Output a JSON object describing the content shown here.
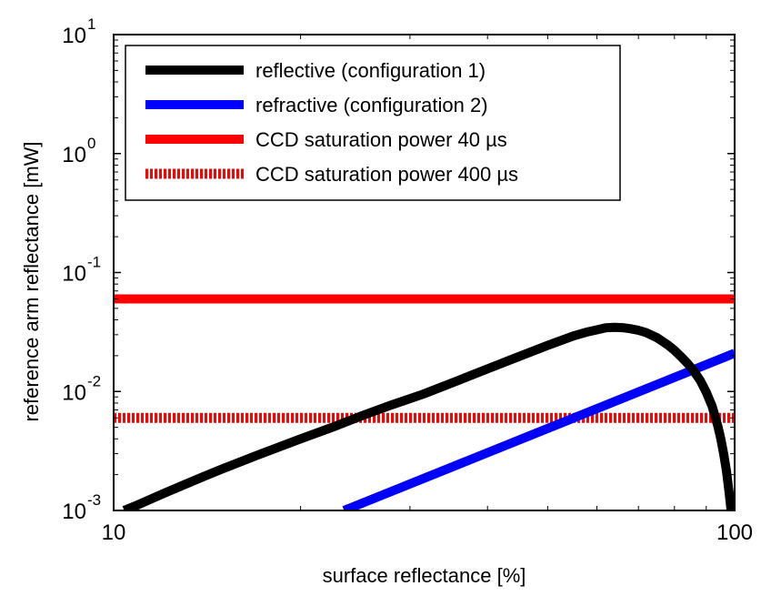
{
  "chart_data": {
    "type": "line",
    "title": "",
    "xlabel": "surface reflectance [%]",
    "ylabel": "reference arm reflectance [mW]",
    "xscale": "log",
    "yscale": "log",
    "xlim": [
      10,
      100
    ],
    "ylim": [
      0.001,
      10
    ],
    "x_ticks": [
      {
        "value": 10,
        "label": "10"
      },
      {
        "value": 100,
        "label": "100"
      }
    ],
    "y_ticks": [
      {
        "value": 0.001,
        "base": "10",
        "exp": "-3"
      },
      {
        "value": 0.01,
        "base": "10",
        "exp": "-2"
      },
      {
        "value": 0.1,
        "base": "10",
        "exp": "-1"
      },
      {
        "value": 1,
        "base": "10",
        "exp": "0"
      },
      {
        "value": 10,
        "base": "10",
        "exp": "1"
      }
    ],
    "grid": false,
    "legend_position": "top-left",
    "series": [
      {
        "name": "reflective (configuration 1)",
        "color": "#000000",
        "style": "solid",
        "points": [
          [
            10.4,
            0.001
          ],
          [
            11,
            0.00113
          ],
          [
            12,
            0.00138
          ],
          [
            13,
            0.00165
          ],
          [
            14,
            0.00194
          ],
          [
            15,
            0.00225
          ],
          [
            17,
            0.0029
          ],
          [
            20,
            0.004
          ],
          [
            22.5,
            0.005
          ],
          [
            25,
            0.0062
          ],
          [
            28,
            0.0077
          ],
          [
            31.5,
            0.0095
          ],
          [
            35.5,
            0.0121
          ],
          [
            40,
            0.0155
          ],
          [
            45,
            0.0197
          ],
          [
            50,
            0.0244
          ],
          [
            55,
            0.0293
          ],
          [
            58,
            0.0317
          ],
          [
            60,
            0.033
          ],
          [
            62,
            0.0343
          ],
          [
            64,
            0.0346
          ],
          [
            66,
            0.0344
          ],
          [
            68,
            0.0337
          ],
          [
            70,
            0.0327
          ],
          [
            72,
            0.0313
          ],
          [
            75,
            0.0283
          ],
          [
            78,
            0.0247
          ],
          [
            80,
            0.0222
          ],
          [
            82,
            0.0196
          ],
          [
            84,
            0.0172
          ],
          [
            86,
            0.0148
          ],
          [
            88,
            0.0124
          ],
          [
            90,
            0.0099
          ],
          [
            92,
            0.0075
          ],
          [
            94,
            0.0051
          ],
          [
            95,
            0.004
          ],
          [
            96,
            0.003
          ],
          [
            97,
            0.00215
          ],
          [
            98,
            0.0014
          ],
          [
            98.5,
            0.0011
          ],
          [
            98.7,
            0.001
          ]
        ]
      },
      {
        "name": "refractive (configuration 2)",
        "color": "#0000ff",
        "style": "solid",
        "points": [
          [
            23.5,
            0.001
          ],
          [
            100,
            0.021
          ]
        ]
      },
      {
        "name": "CCD saturation power 40 µs",
        "color": "#ff0000",
        "style": "solid",
        "points": [
          [
            10,
            0.06
          ],
          [
            100,
            0.06
          ]
        ]
      },
      {
        "name": "CCD saturation power 400 µs",
        "color": "#ff0000",
        "style": "dashed",
        "points": [
          [
            10,
            0.006
          ],
          [
            100,
            0.006
          ]
        ]
      }
    ]
  }
}
